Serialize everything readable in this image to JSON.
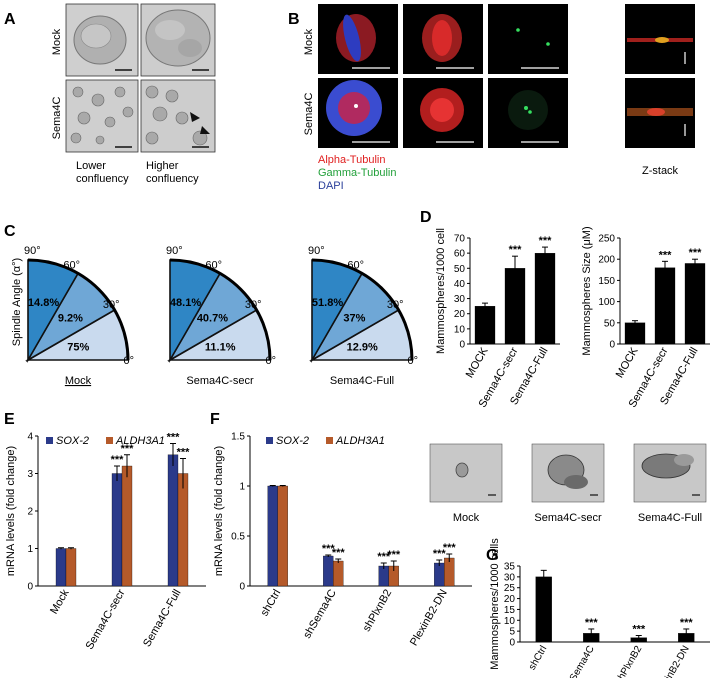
{
  "panels": {
    "A": {
      "letter": "A",
      "rows": [
        "Mock",
        "Sema4C"
      ],
      "cols": [
        "Lower\nconfluency",
        "Higher\nconfluency"
      ]
    },
    "B": {
      "letter": "B",
      "rows": [
        "Mock",
        "Sema4C"
      ],
      "legend": [
        {
          "text": "Alpha-Tubulin",
          "color": "#e02020"
        },
        {
          "text": "Gamma-Tubulin",
          "color": "#22a03a"
        },
        {
          "text": "DAPI",
          "color": "#2a3f9a"
        }
      ],
      "zstack": "Z-stack"
    },
    "C": {
      "letter": "C",
      "ylabel": "Spindle Angle (α°)",
      "angle_ticks": [
        "0°",
        "30°",
        "60°",
        "90°"
      ],
      "charts": [
        {
          "name": "Mock",
          "underline": true,
          "values": [
            "75%",
            "9.2%",
            "14.8%"
          ]
        },
        {
          "name": "Sema4C-secr",
          "underline": false,
          "values": [
            "11.1%",
            "40.7%",
            "48.1%"
          ]
        },
        {
          "name": "Sema4C-Full",
          "underline": false,
          "values": [
            "12.9%",
            "37%",
            "51.8%"
          ]
        }
      ],
      "sector_colors": [
        "#c9daee",
        "#6fa7d6",
        "#2f86c5"
      ]
    },
    "D": {
      "letter": "D",
      "images": [
        "Mock",
        "Sema4C-secr",
        "Sema4C-Full"
      ]
    },
    "E": {
      "letter": "E"
    },
    "F": {
      "letter": "F"
    },
    "G": {
      "letter": "G"
    }
  },
  "chart_data": [
    {
      "id": "D-left",
      "type": "bar",
      "ylabel": "Mammospheres/1000 cell",
      "categories": [
        "MOCK",
        "Sema4C-secr",
        "Sema4C-Full"
      ],
      "values": [
        25,
        50,
        60
      ],
      "errors": [
        2,
        8,
        4
      ],
      "significance": [
        "",
        "***",
        "***"
      ],
      "ylim": [
        0,
        70
      ],
      "yticks": [
        0,
        10,
        20,
        30,
        40,
        50,
        60,
        70
      ]
    },
    {
      "id": "D-right",
      "type": "bar",
      "ylabel": "Mammospheres Size (μM)",
      "categories": [
        "MOCK",
        "Sema4C-secr",
        "Sema4C-Full"
      ],
      "values": [
        50,
        180,
        190
      ],
      "errors": [
        5,
        15,
        10
      ],
      "significance": [
        "",
        "***",
        "***"
      ],
      "ylim": [
        0,
        250
      ],
      "yticks": [
        0,
        50,
        100,
        150,
        200,
        250
      ]
    },
    {
      "id": "E",
      "type": "bar",
      "ylabel": "mRNA levels (fold change)",
      "categories": [
        "Mock",
        "Sema4C-secr",
        "Sema4C-Full"
      ],
      "series": [
        {
          "name": "SOX-2",
          "color": "#2b3a8a",
          "values": [
            1,
            3.0,
            3.5
          ],
          "errors": [
            0.02,
            0.2,
            0.3
          ],
          "significance": [
            "",
            "***",
            "***"
          ]
        },
        {
          "name": "ALDH3A1",
          "color": "#b55a2a",
          "values": [
            1,
            3.2,
            3.0
          ],
          "errors": [
            0.02,
            0.3,
            0.4
          ],
          "significance": [
            "",
            "***",
            "***"
          ]
        }
      ],
      "ylim": [
        0,
        4
      ],
      "yticks": [
        0,
        1,
        2,
        3,
        4
      ]
    },
    {
      "id": "F",
      "type": "bar",
      "ylabel": "mRNA levels (fold change)",
      "categories": [
        "shCtrl",
        "shSema4C",
        "shPlxnB2",
        "PlexinB2-DN"
      ],
      "series": [
        {
          "name": "SOX-2",
          "color": "#2b3a8a",
          "values": [
            1,
            0.3,
            0.2,
            0.23
          ],
          "errors": [
            0.005,
            0.01,
            0.03,
            0.03
          ],
          "significance": [
            "",
            "***",
            "***",
            "***"
          ]
        },
        {
          "name": "ALDH3A1",
          "color": "#b55a2a",
          "values": [
            1,
            0.25,
            0.2,
            0.28
          ],
          "errors": [
            0.005,
            0.02,
            0.05,
            0.04
          ],
          "significance": [
            "",
            "***",
            "***",
            "***"
          ]
        }
      ],
      "ylim": [
        0,
        1.5
      ],
      "yticks": [
        0,
        0.5,
        1,
        1.5
      ]
    },
    {
      "id": "G",
      "type": "bar",
      "ylabel": "Mammospheres/1000 cells",
      "categories": [
        "shCtrl",
        "shSema4C",
        "shPlxnB2",
        "PlexinB2-DN"
      ],
      "values": [
        30,
        4,
        2,
        4
      ],
      "errors": [
        3,
        2,
        1,
        2
      ],
      "significance": [
        "",
        "***",
        "***",
        "***"
      ],
      "ylim": [
        0,
        35
      ],
      "yticks": [
        0,
        5,
        10,
        15,
        20,
        25,
        30,
        35
      ]
    }
  ]
}
